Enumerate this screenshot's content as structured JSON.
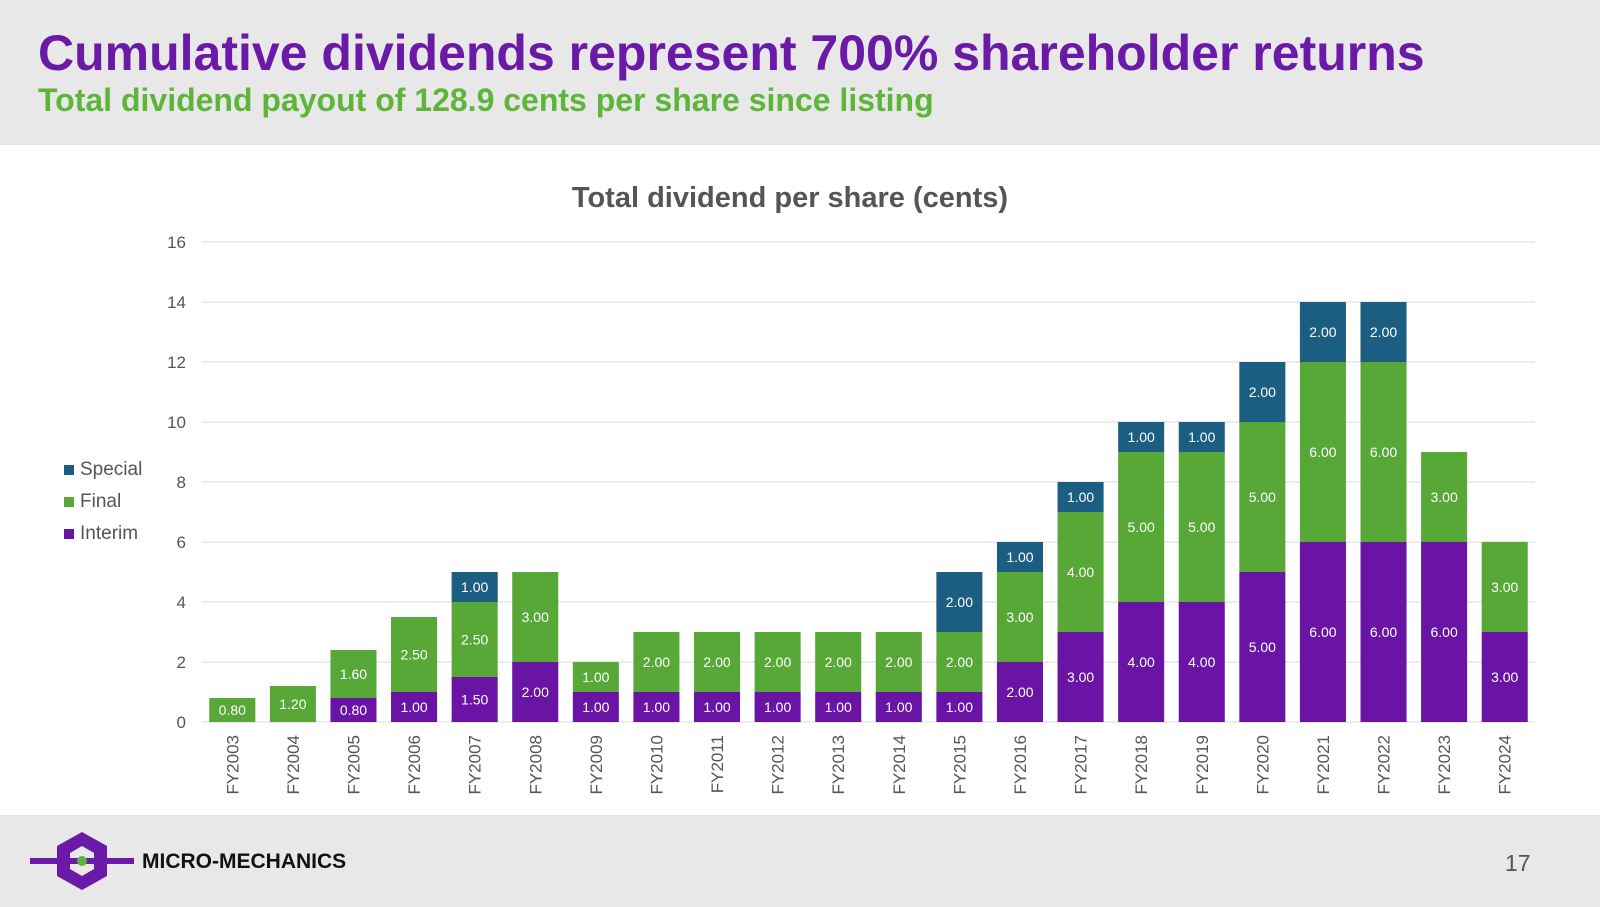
{
  "slide": {
    "title": "Cumulative dividends represent 700% shareholder returns",
    "subtitle": "Total dividend payout of 128.9 cents per share since listing",
    "company": "MICRO-MECHANICS",
    "page_number": "17"
  },
  "colors": {
    "title": "#6a1aa6",
    "subtitle": "#5db53a",
    "interim": "#6a14a6",
    "final": "#57a836",
    "special": "#1b5e82"
  },
  "chart_data": {
    "type": "bar",
    "stacked": true,
    "title": "Total dividend per share (cents)",
    "categories": [
      "FY2003",
      "FY2004",
      "FY2005",
      "FY2006",
      "FY2007",
      "FY2008",
      "FY2009",
      "FY2010",
      "FY2011",
      "FY2012",
      "FY2013",
      "FY2014",
      "FY2015",
      "FY2016",
      "FY2017",
      "FY2018",
      "FY2019",
      "FY2020",
      "FY2021",
      "FY2022",
      "FY2023",
      "FY2024"
    ],
    "series": [
      {
        "name": "Interim",
        "color": "#6a14a6",
        "values": [
          0,
          0,
          0.8,
          1.0,
          1.5,
          2.0,
          1.0,
          1.0,
          1.0,
          1.0,
          1.0,
          1.0,
          1.0,
          2.0,
          3.0,
          4.0,
          4.0,
          5.0,
          6.0,
          6.0,
          6.0,
          3.0
        ]
      },
      {
        "name": "Final",
        "color": "#57a836",
        "values": [
          0.8,
          1.2,
          1.6,
          2.5,
          2.5,
          3.0,
          1.0,
          2.0,
          2.0,
          2.0,
          2.0,
          2.0,
          2.0,
          3.0,
          4.0,
          5.0,
          5.0,
          5.0,
          6.0,
          6.0,
          3.0,
          3.0
        ]
      },
      {
        "name": "Special",
        "color": "#1b5e82",
        "values": [
          0,
          0,
          0,
          0,
          1.0,
          0,
          0,
          0,
          0,
          0,
          0,
          0,
          2.0,
          1.0,
          1.0,
          1.0,
          1.0,
          2.0,
          2.0,
          2.0,
          0,
          0
        ]
      }
    ],
    "ylim": [
      0,
      16
    ],
    "yticks": [
      0,
      2,
      4,
      6,
      8,
      10,
      12,
      14,
      16
    ],
    "grid": true,
    "legend_position": "left",
    "legend_order": [
      "Special",
      "Final",
      "Interim"
    ],
    "data_labels": true,
    "label_format": "2 decimals"
  }
}
